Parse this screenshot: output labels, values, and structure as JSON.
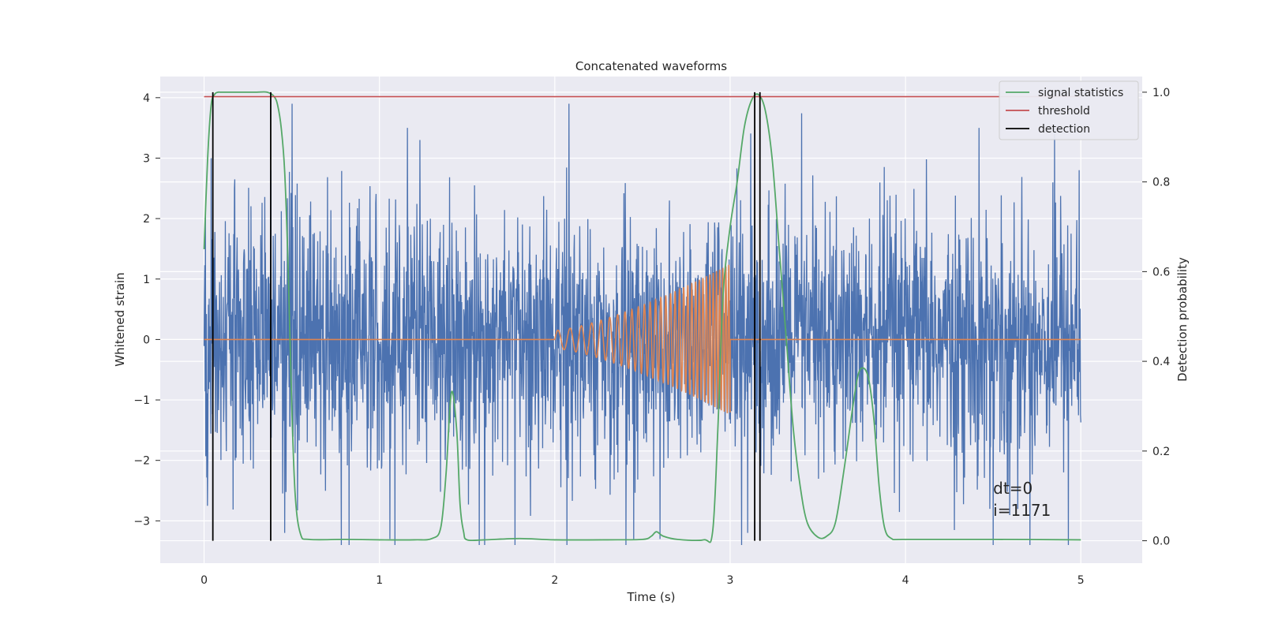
{
  "chart_data": {
    "type": "line",
    "title": "Concatenated waveforms",
    "xlabel": "Time (s)",
    "ylabel": "Whitened strain",
    "ylabel_right": "Detection probability",
    "xlim": [
      -0.25,
      5.35
    ],
    "ylim": [
      -3.7,
      4.35
    ],
    "ylim_right": [
      -0.05,
      1.035
    ],
    "xticks": [
      0,
      1,
      2,
      3,
      4,
      5
    ],
    "yticks": [
      -3,
      -2,
      -1,
      0,
      1,
      2,
      3,
      4
    ],
    "yticks_right": [
      0.0,
      0.2,
      0.4,
      0.6,
      0.8,
      1.0
    ],
    "grid": true,
    "legend_position": "top-right",
    "colors": {
      "strain": "#4c72b0",
      "injection": "#dd8452",
      "signal_statistics": "#55a868",
      "threshold": "#c44e52",
      "detection": "#000000",
      "plot_bg": "#eaeaf2",
      "grid": "#ffffff"
    },
    "legend": [
      {
        "label": "signal statistics",
        "color": "#55a868"
      },
      {
        "label": "threshold",
        "color": "#c44e52"
      },
      {
        "label": "detection",
        "color": "#000000"
      }
    ],
    "series": [
      {
        "role": "strain",
        "x_range": [
          0,
          5
        ],
        "y_min": -3.4,
        "y_max": 3.9,
        "spikes": [
          {
            "x": 2.08,
            "y": 3.9
          },
          {
            "x": 1.16,
            "y": 3.5
          },
          {
            "x": 1.23,
            "y": 3.3
          },
          {
            "x": 4.85,
            "y": 3.55
          },
          {
            "x": 4.42,
            "y": 3.5
          },
          {
            "x": 4.5,
            "y": 3.4
          },
          {
            "x": 0.04,
            "y": 3.0
          },
          {
            "x": 0.38,
            "y": 2.8
          },
          {
            "x": 4.99,
            "y": 2.8
          },
          {
            "x": 0.46,
            "y": -3.2
          },
          {
            "x": 1.06,
            "y": -3.3
          },
          {
            "x": 1.6,
            "y": -3.4
          },
          {
            "x": 2.45,
            "y": -3.3
          },
          {
            "x": 2.6,
            "y": -3.3
          },
          {
            "x": 4.5,
            "y": -3.4
          },
          {
            "x": 3.1,
            "y": -3.2
          },
          {
            "x": 0.02,
            "y": -2.75
          }
        ]
      },
      {
        "role": "injection",
        "x_range": [
          2.0,
          3.0
        ],
        "amplitude_start": 0.15,
        "amplitude_end": 1.25,
        "freq_start_hz": 14,
        "freq_end_hz": 60
      },
      {
        "name": "signal statistics",
        "axis": "right",
        "x": [
          0,
          0.02,
          0.04,
          0.06,
          0.08,
          0.1,
          0.2,
          0.3,
          0.36,
          0.4,
          0.42,
          0.44,
          0.46,
          0.48,
          0.5,
          0.52,
          0.55,
          0.6,
          0.8,
          1.0,
          1.2,
          1.3,
          1.35,
          1.38,
          1.41,
          1.44,
          1.46,
          1.48,
          1.5,
          1.6,
          1.8,
          2.0,
          2.3,
          2.5,
          2.55,
          2.58,
          2.62,
          2.7,
          2.85,
          2.9,
          2.93,
          2.96,
          3.0,
          3.04,
          3.08,
          3.12,
          3.16,
          3.2,
          3.24,
          3.28,
          3.32,
          3.36,
          3.4,
          3.44,
          3.5,
          3.55,
          3.6,
          3.65,
          3.7,
          3.73,
          3.76,
          3.79,
          3.82,
          3.85,
          3.88,
          3.92,
          4.0,
          4.5,
          5.0
        ],
        "y": [
          0.65,
          0.85,
          0.97,
          0.995,
          1.0,
          1.0,
          1.0,
          1.0,
          1.0,
          0.99,
          0.97,
          0.92,
          0.82,
          0.6,
          0.3,
          0.1,
          0.015,
          0.003,
          0.003,
          0.002,
          0.002,
          0.005,
          0.03,
          0.15,
          0.33,
          0.25,
          0.08,
          0.02,
          0.002,
          0.002,
          0.005,
          0.002,
          0.002,
          0.003,
          0.01,
          0.02,
          0.01,
          0.003,
          0.002,
          0.02,
          0.25,
          0.55,
          0.7,
          0.8,
          0.92,
          0.98,
          0.995,
          0.96,
          0.85,
          0.65,
          0.45,
          0.25,
          0.12,
          0.04,
          0.008,
          0.01,
          0.04,
          0.16,
          0.3,
          0.37,
          0.385,
          0.36,
          0.27,
          0.12,
          0.03,
          0.005,
          0.003,
          0.003,
          0.002
        ]
      },
      {
        "name": "threshold",
        "axis": "right",
        "x": [
          0,
          5
        ],
        "y": [
          0.99,
          0.99
        ]
      },
      {
        "name": "detection",
        "axis": "right",
        "type": "vlines",
        "x": [
          0.05,
          0.38,
          3.14,
          3.17
        ],
        "y_range": [
          0.0,
          1.0
        ]
      }
    ],
    "annotations": [
      {
        "text": "dt=0",
        "x": 4.5,
        "y": -2.55
      },
      {
        "text": "i=1171",
        "x": 4.5,
        "y": -2.92
      }
    ]
  }
}
